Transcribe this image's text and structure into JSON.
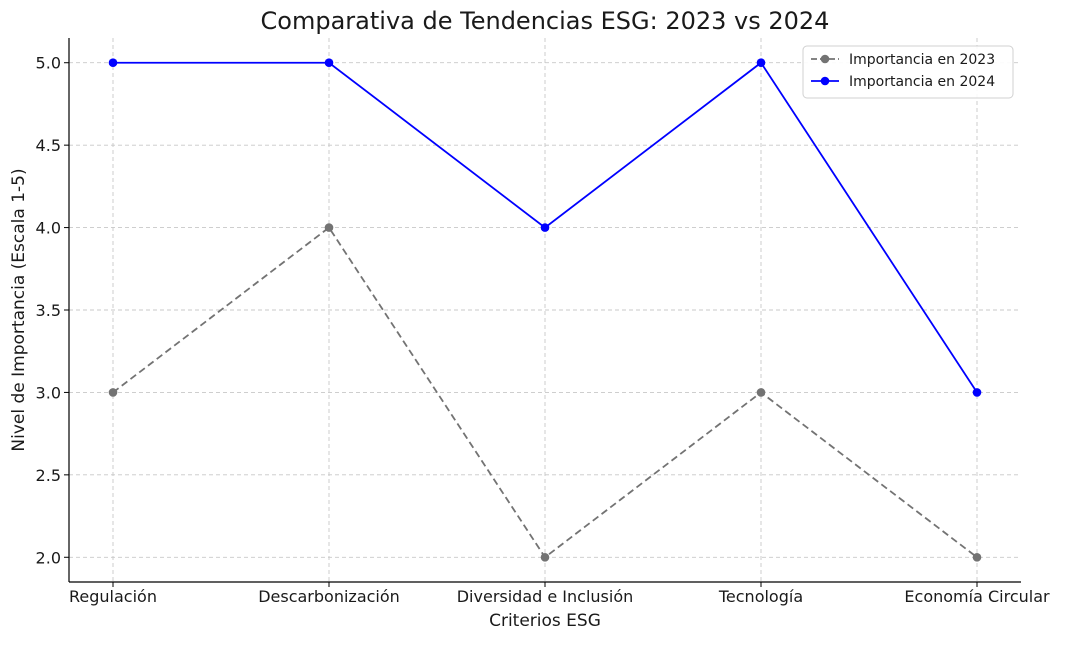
{
  "chart_data": {
    "type": "line",
    "title": "Comparativa de Tendencias ESG: 2023 vs 2024",
    "xlabel": "Criterios ESG",
    "ylabel": "Nivel de Importancia (Escala 1-5)",
    "categories": [
      "Regulación",
      "Descarbonización",
      "Diversidad e Inclusión",
      "Tecnología",
      "Economía Circular"
    ],
    "ylim": [
      1.85,
      5.15
    ],
    "yticks": [
      2.0,
      2.5,
      3.0,
      3.5,
      4.0,
      4.5,
      5.0
    ],
    "ytick_labels": [
      "2.0",
      "2.5",
      "3.0",
      "3.5",
      "4.0",
      "4.5",
      "5.0"
    ],
    "grid": true,
    "legend_position": "top-right",
    "series": [
      {
        "name": "Importancia en 2023",
        "values": [
          3,
          4,
          2,
          3,
          2
        ],
        "color": "#737373",
        "line_style": "dashed",
        "marker": "circle"
      },
      {
        "name": "Importancia en 2024",
        "values": [
          5,
          5,
          4,
          5,
          3
        ],
        "color": "#0000ff",
        "line_style": "solid",
        "marker": "circle"
      }
    ]
  }
}
